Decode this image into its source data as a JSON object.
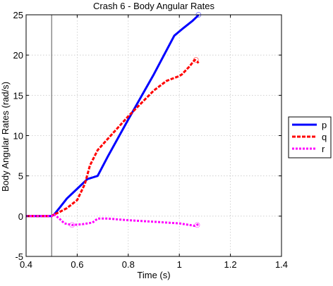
{
  "chart_data": {
    "type": "line",
    "title": "Crash 6 - Body Angular Rates",
    "xlabel": "Time (s)",
    "ylabel": "Body Angular Rates (rad/s)",
    "xlim": [
      0.4,
      1.4
    ],
    "ylim": [
      -5,
      25
    ],
    "xticks": [
      "0.4",
      "0.6",
      "0.8",
      "1",
      "1.2",
      "1.4"
    ],
    "yticks": [
      "-5",
      "0",
      "5",
      "10",
      "15",
      "20",
      "25"
    ],
    "grid": true,
    "legend_position": "outside-right",
    "vertical_marker_x": 0.5,
    "series": [
      {
        "name": "p",
        "color": "#0000ff",
        "style": "solid",
        "x": [
          0.4,
          0.5,
          0.51,
          0.53,
          0.56,
          0.6,
          0.64,
          0.66,
          0.68,
          0.72,
          0.8,
          0.9,
          0.98,
          1.01,
          1.05,
          1.07,
          1.075
        ],
        "y": [
          0.0,
          0.0,
          0.2,
          1.0,
          2.2,
          3.4,
          4.6,
          4.8,
          5.0,
          7.4,
          12.0,
          17.6,
          22.4,
          23.2,
          24.2,
          24.8,
          25.0
        ]
      },
      {
        "name": "q",
        "color": "#ff0000",
        "style": "dashed",
        "x": [
          0.4,
          0.5,
          0.51,
          0.53,
          0.56,
          0.6,
          0.63,
          0.65,
          0.68,
          0.72,
          0.8,
          0.9,
          0.95,
          1.0,
          1.01,
          1.04,
          1.06,
          1.07,
          1.075
        ],
        "y": [
          0.0,
          0.0,
          0.2,
          0.5,
          1.0,
          2.0,
          4.0,
          6.3,
          8.2,
          9.6,
          12.4,
          15.6,
          16.8,
          17.4,
          17.6,
          18.6,
          19.4,
          19.2,
          19.0
        ]
      },
      {
        "name": "r",
        "color": "#ff00ff",
        "style": "dotted",
        "x": [
          0.4,
          0.5,
          0.51,
          0.53,
          0.55,
          0.58,
          0.62,
          0.66,
          0.68,
          0.72,
          0.8,
          0.9,
          1.0,
          1.04,
          1.06,
          1.075
        ],
        "y": [
          0.0,
          0.0,
          0.2,
          -0.3,
          -0.9,
          -1.1,
          -1.0,
          -0.8,
          -0.3,
          -0.3,
          -0.5,
          -0.7,
          -0.9,
          -1.1,
          -1.2,
          -1.0
        ]
      }
    ],
    "end_markers": [
      {
        "series": "p",
        "x": 1.075,
        "y": 25.0
      },
      {
        "series": "q",
        "x": 1.065,
        "y": 19.4
      },
      {
        "series": "r",
        "x": 0.58,
        "y": -1.1
      },
      {
        "series": "r",
        "x": 1.07,
        "y": -1.1
      }
    ]
  }
}
